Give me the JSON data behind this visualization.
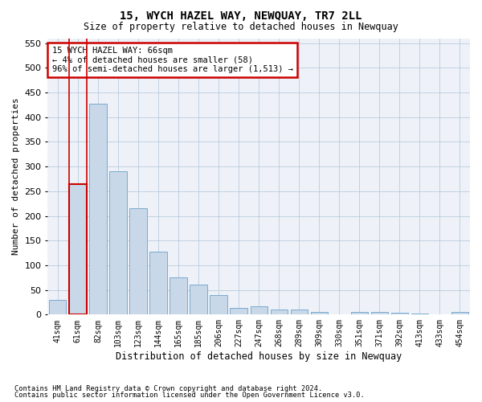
{
  "title": "15, WYCH HAZEL WAY, NEWQUAY, TR7 2LL",
  "subtitle": "Size of property relative to detached houses in Newquay",
  "xlabel": "Distribution of detached houses by size in Newquay",
  "ylabel": "Number of detached properties",
  "bar_color": "#c8d8e8",
  "bar_edge_color": "#7aaace",
  "highlight_bar_edge_color": "#cc0000",
  "grid_color": "#b0c4d8",
  "background_color": "#eef2f8",
  "categories": [
    "41sqm",
    "61sqm",
    "82sqm",
    "103sqm",
    "123sqm",
    "144sqm",
    "165sqm",
    "185sqm",
    "206sqm",
    "227sqm",
    "247sqm",
    "268sqm",
    "289sqm",
    "309sqm",
    "330sqm",
    "351sqm",
    "371sqm",
    "392sqm",
    "413sqm",
    "433sqm",
    "454sqm"
  ],
  "values": [
    30,
    265,
    428,
    290,
    215,
    128,
    76,
    61,
    40,
    14,
    17,
    10,
    10,
    5,
    0,
    5,
    5,
    3,
    2,
    0,
    5
  ],
  "highlight_index": 1,
  "annotation_line1": "15 WYCH HAZEL WAY: 66sqm",
  "annotation_line2": "← 4% of detached houses are smaller (58)",
  "annotation_line3": "96% of semi-detached houses are larger (1,513) →",
  "annotation_box_color": "#ffffff",
  "annotation_box_edge_color": "#cc0000",
  "ylim": [
    0,
    560
  ],
  "yticks": [
    0,
    50,
    100,
    150,
    200,
    250,
    300,
    350,
    400,
    450,
    500,
    550
  ],
  "footer1": "Contains HM Land Registry data © Crown copyright and database right 2024.",
  "footer2": "Contains public sector information licensed under the Open Government Licence v3.0."
}
